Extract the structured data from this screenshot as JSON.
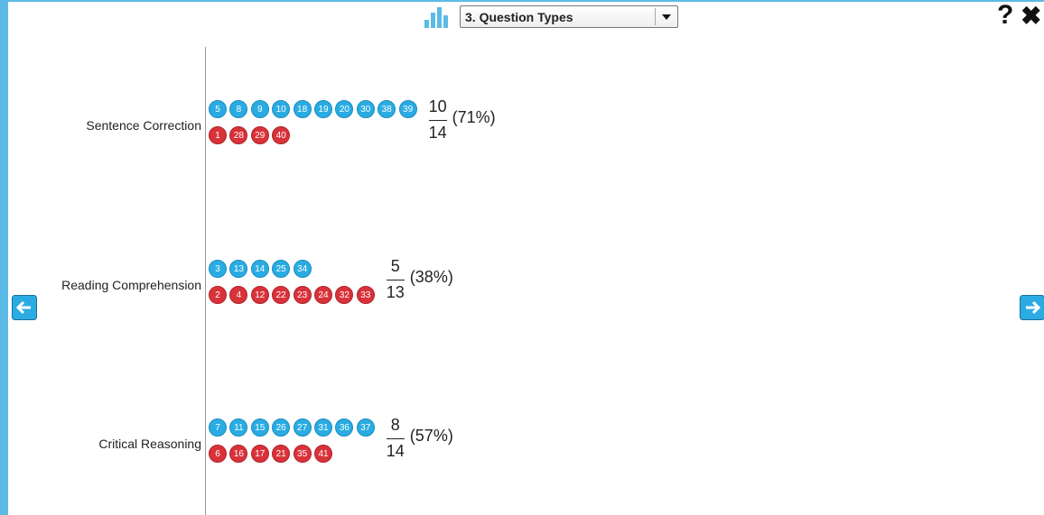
{
  "toolbar": {
    "dropdown": "3. Question Types",
    "help": "?",
    "close": "✖"
  },
  "rows": [
    {
      "label": "Sentence Correction",
      "correct": [
        5,
        8,
        9,
        10,
        18,
        19,
        20,
        30,
        38,
        39
      ],
      "incorrect": [
        1,
        28,
        29,
        40
      ],
      "numerator": 10,
      "denominator": 14,
      "percent": "(71%)"
    },
    {
      "label": "Reading Comprehension",
      "correct": [
        3,
        13,
        14,
        25,
        34
      ],
      "incorrect": [
        2,
        4,
        12,
        22,
        23,
        24,
        32,
        33
      ],
      "numerator": 5,
      "denominator": 13,
      "percent": "(38%)"
    },
    {
      "label": "Critical Reasoning",
      "correct": [
        7,
        11,
        15,
        26,
        27,
        31,
        36,
        37
      ],
      "incorrect": [
        6,
        16,
        17,
        21,
        35,
        41
      ],
      "numerator": 8,
      "denominator": 14,
      "percent": "(57%)"
    }
  ]
}
